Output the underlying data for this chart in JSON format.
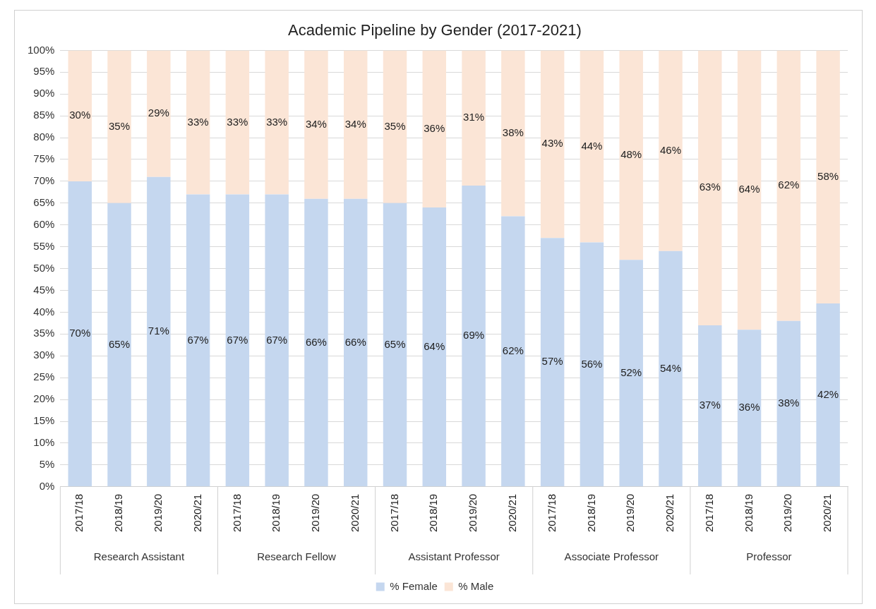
{
  "chart_data": {
    "type": "bar",
    "title": "Academic Pipeline by Gender (2017-2021)",
    "stacked": true,
    "grid": "y",
    "legend": "bottom",
    "categories": [
      "2017/18",
      "2018/19",
      "2019/20",
      "2020/21",
      "2017/18",
      "2018/19",
      "2019/20",
      "2020/21",
      "2017/18",
      "2018/19",
      "2019/20",
      "2020/21",
      "2017/18",
      "2018/19",
      "2019/20",
      "2020/21",
      "2017/18",
      "2018/19",
      "2019/20",
      "2020/21"
    ],
    "annotations": [
      "Research Assistant",
      "Research Fellow",
      "Assistant Professor",
      "Associate Professor",
      "Professor"
    ],
    "ylim": [
      0,
      100
    ],
    "yticks": [
      {
        "value": 0,
        "label": "0%"
      },
      {
        "value": 5,
        "label": "5%"
      },
      {
        "value": 10,
        "label": "10%"
      },
      {
        "value": 15,
        "label": "15%"
      },
      {
        "value": 20,
        "label": "20%"
      },
      {
        "value": 25,
        "label": "25%"
      },
      {
        "value": 30,
        "label": "30%"
      },
      {
        "value": 35,
        "label": "35%"
      },
      {
        "value": 40,
        "label": "40%"
      },
      {
        "value": 45,
        "label": "45%"
      },
      {
        "value": 50,
        "label": "50%"
      },
      {
        "value": 55,
        "label": "55%"
      },
      {
        "value": 60,
        "label": "60%"
      },
      {
        "value": 65,
        "label": "65%"
      },
      {
        "value": 70,
        "label": "70%"
      },
      {
        "value": 75,
        "label": "75%"
      },
      {
        "value": 80,
        "label": "80%"
      },
      {
        "value": 85,
        "label": "85%"
      },
      {
        "value": 90,
        "label": "90%"
      },
      {
        "value": 95,
        "label": "95%"
      },
      {
        "value": 100,
        "label": "100%"
      }
    ],
    "series": [
      {
        "name": "% Female",
        "color": "#c5d7ef",
        "values": [
          70,
          65,
          71,
          67,
          67,
          67,
          66,
          66,
          65,
          64,
          69,
          62,
          57,
          56,
          52,
          54,
          37,
          36,
          38,
          42
        ],
        "value_labels": [
          "70%",
          "65%",
          "71%",
          "67%",
          "67%",
          "67%",
          "66%",
          "66%",
          "65%",
          "64%",
          "69%",
          "62%",
          "57%",
          "56%",
          "52%",
          "54%",
          "37%",
          "36%",
          "38%",
          "42%"
        ]
      },
      {
        "name": "% Male",
        "color": "#fbe5d6",
        "values": [
          30,
          35,
          29,
          33,
          33,
          33,
          34,
          34,
          35,
          36,
          31,
          38,
          43,
          44,
          48,
          46,
          63,
          64,
          62,
          58
        ],
        "value_labels": [
          "30%",
          "35%",
          "29%",
          "33%",
          "33%",
          "33%",
          "34%",
          "34%",
          "35%",
          "36%",
          "31%",
          "38%",
          "43%",
          "44%",
          "48%",
          "46%",
          "63%",
          "64%",
          "62%",
          "58%"
        ]
      }
    ]
  }
}
